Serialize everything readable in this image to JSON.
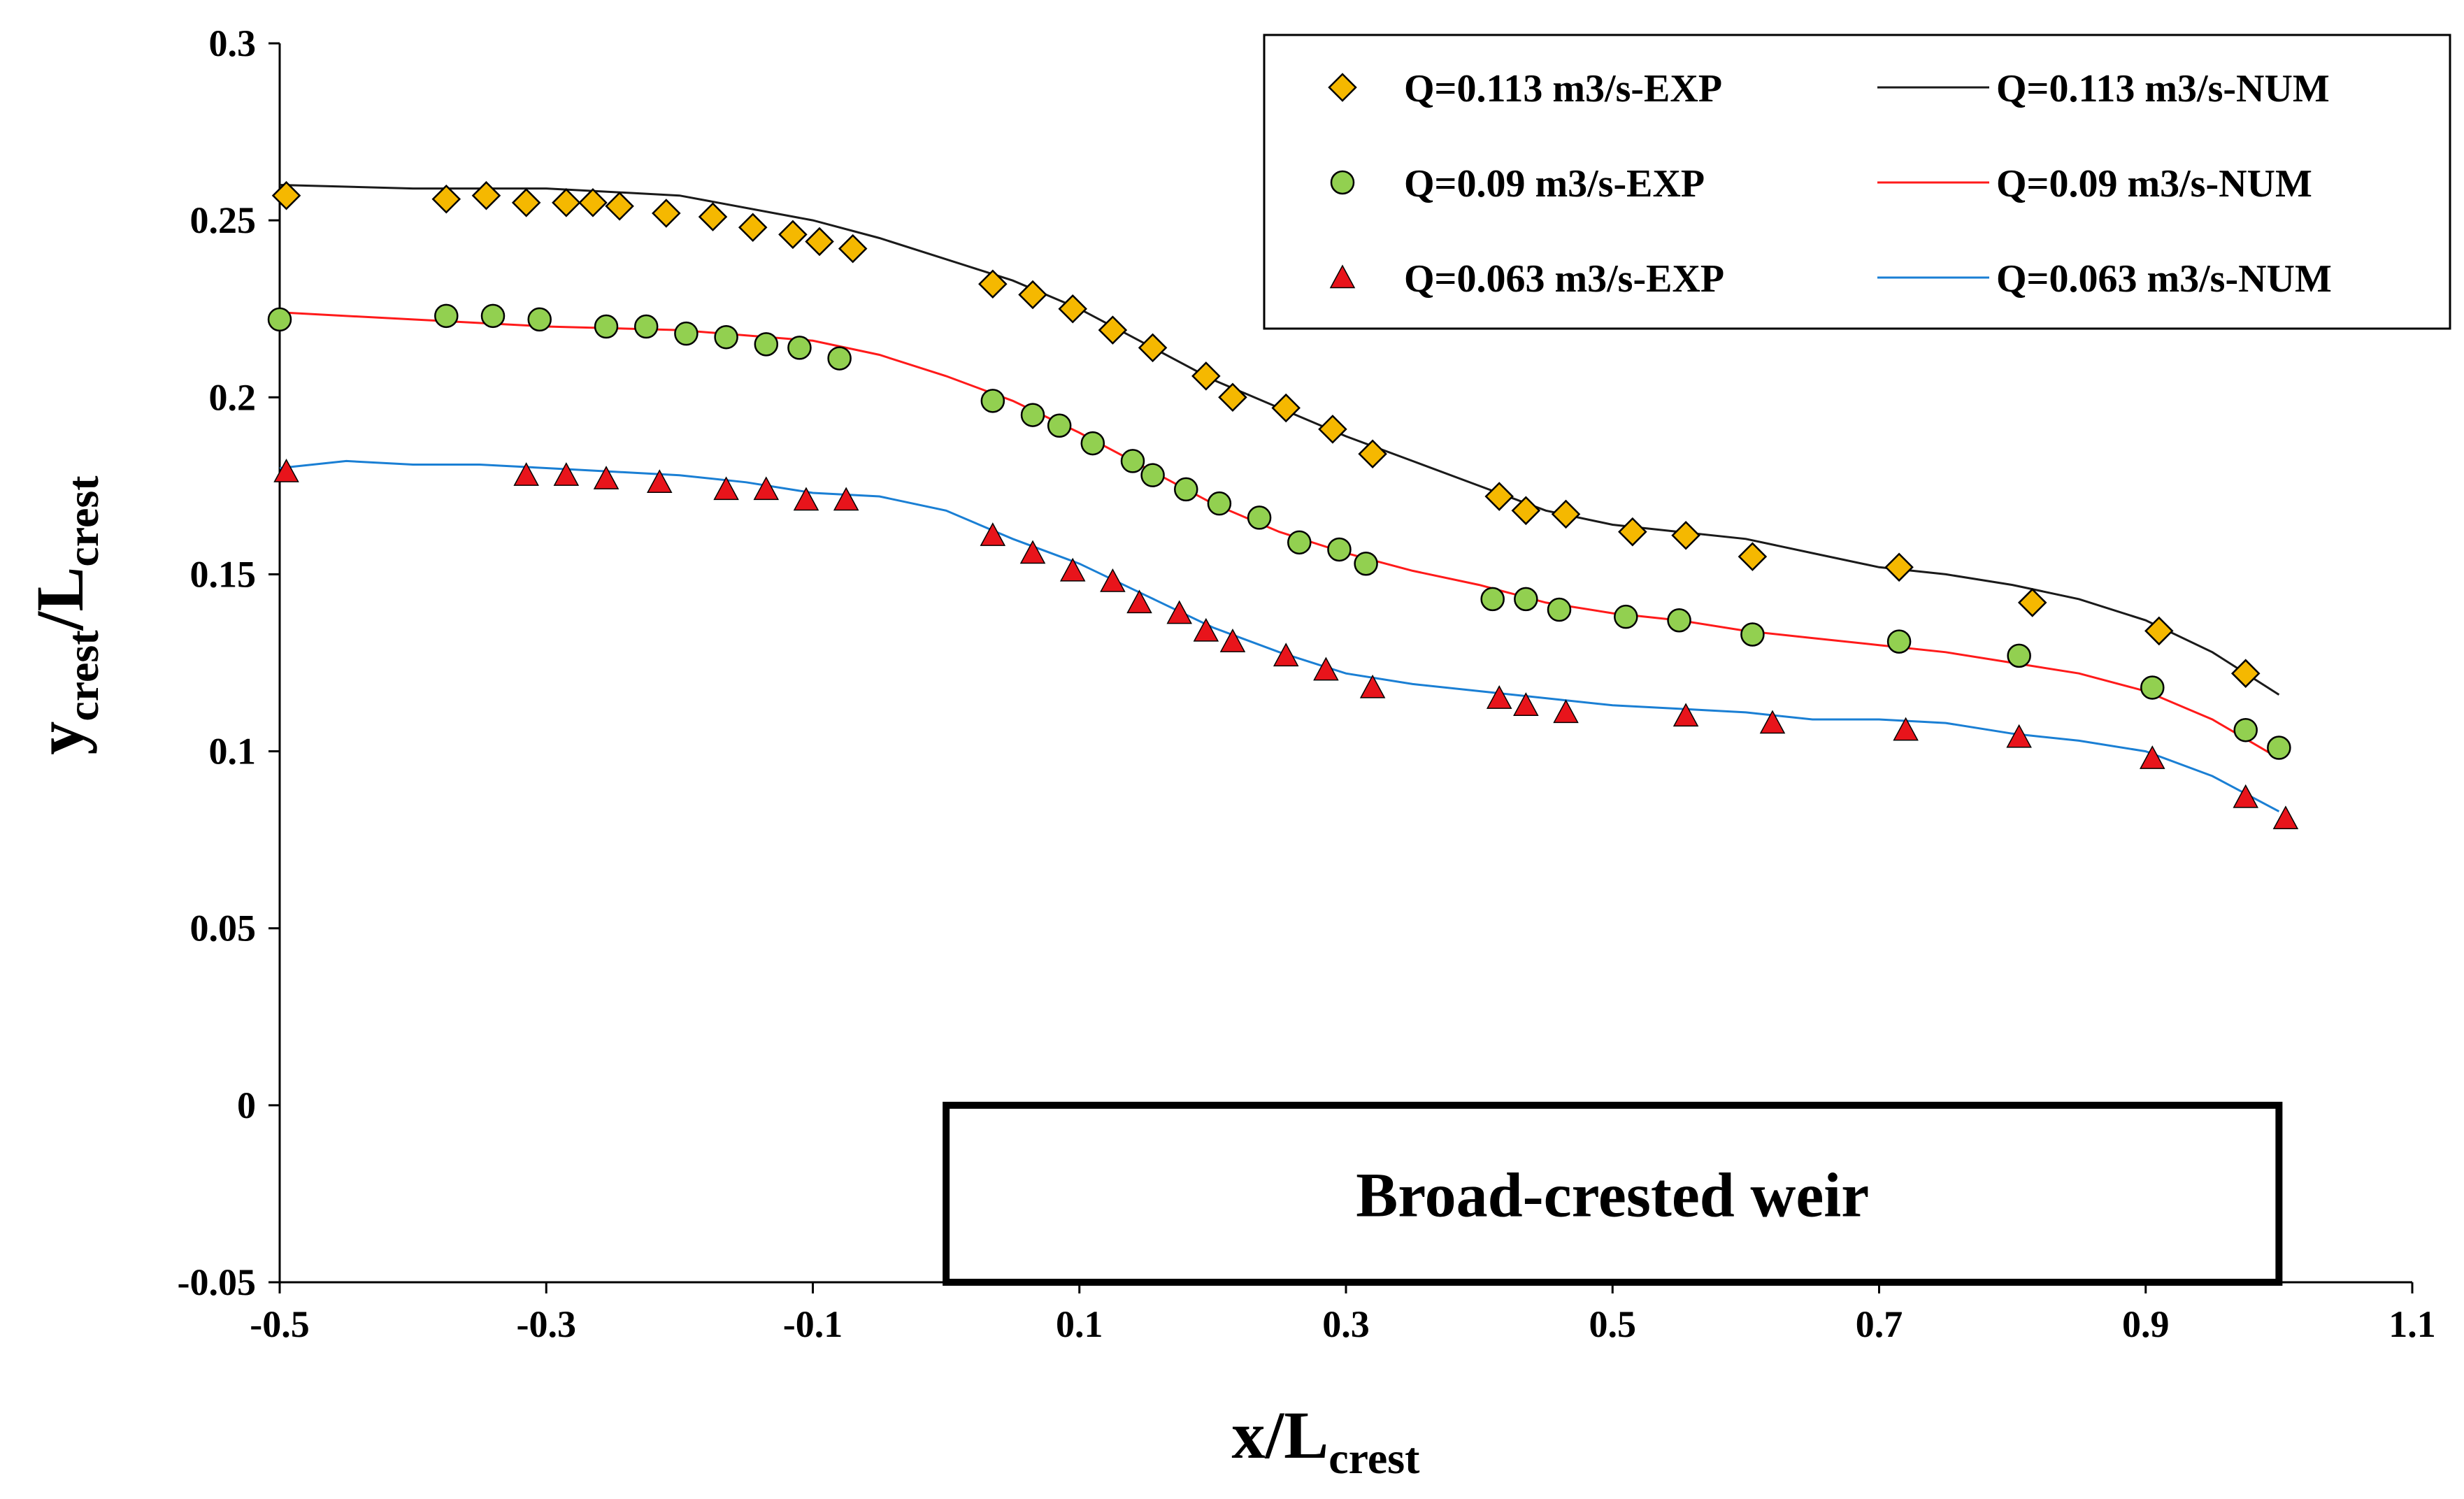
{
  "chart_data": {
    "type": "scatter",
    "title": "",
    "xlabel": {
      "main": "x/L",
      "sub": "crest"
    },
    "ylabel": {
      "main": "y",
      "sub1": "crest",
      "mid": "/L",
      "sub2": "crest"
    },
    "xlim": [
      -0.5,
      1.1
    ],
    "ylim": [
      -0.05,
      0.3
    ],
    "xticks": [
      -0.5,
      -0.3,
      -0.1,
      0.1,
      0.3,
      0.5,
      0.7,
      0.9,
      1.1
    ],
    "xtick_labels": [
      "-0.5",
      "-0.3",
      "-0.1",
      "0.1",
      "0.3",
      "0.5",
      "0.7",
      "0.9",
      "1.1"
    ],
    "yticks": [
      -0.05,
      0,
      0.05,
      0.1,
      0.15,
      0.2,
      0.25,
      0.3
    ],
    "ytick_labels": [
      "-0.05",
      "0",
      "0.05",
      "0.1",
      "0.15",
      "0.2",
      "0.25",
      "0.3"
    ],
    "grid": false,
    "legend_position": "top-right",
    "annotation": {
      "label": "Broad-crested weir",
      "x_start": 0.0,
      "x_end": 1.0,
      "y_top": 0.0,
      "y_bottom": -0.05
    },
    "series": [
      {
        "name": "Q=0.113 m3/s-EXP",
        "kind": "markers",
        "marker": "diamond",
        "color": "#f5b800",
        "x": [
          -0.495,
          -0.375,
          -0.345,
          -0.315,
          -0.285,
          -0.265,
          -0.245,
          -0.21,
          -0.175,
          -0.145,
          -0.115,
          -0.095,
          -0.07,
          0.035,
          0.065,
          0.095,
          0.125,
          0.155,
          0.195,
          0.215,
          0.255,
          0.29,
          0.32,
          0.415,
          0.435,
          0.465,
          0.515,
          0.555,
          0.605,
          0.715,
          0.815,
          0.91,
          0.975
        ],
        "y": [
          0.257,
          0.256,
          0.257,
          0.255,
          0.255,
          0.255,
          0.254,
          0.252,
          0.251,
          0.248,
          0.246,
          0.244,
          0.242,
          0.232,
          0.229,
          0.225,
          0.219,
          0.214,
          0.206,
          0.2,
          0.197,
          0.191,
          0.184,
          0.172,
          0.168,
          0.167,
          0.162,
          0.161,
          0.155,
          0.152,
          0.142,
          0.134,
          0.122
        ]
      },
      {
        "name": "Q=0.09 m3/s-EXP",
        "kind": "markers",
        "marker": "circle",
        "color": "#92d050",
        "x": [
          -0.5,
          -0.375,
          -0.34,
          -0.305,
          -0.255,
          -0.225,
          -0.195,
          -0.165,
          -0.135,
          -0.11,
          -0.08,
          0.035,
          0.065,
          0.085,
          0.11,
          0.14,
          0.155,
          0.18,
          0.205,
          0.235,
          0.265,
          0.295,
          0.315,
          0.41,
          0.435,
          0.46,
          0.51,
          0.55,
          0.605,
          0.715,
          0.805,
          0.905,
          0.975,
          1.0
        ],
        "y": [
          0.222,
          0.223,
          0.223,
          0.222,
          0.22,
          0.22,
          0.218,
          0.217,
          0.215,
          0.214,
          0.211,
          0.199,
          0.195,
          0.192,
          0.187,
          0.182,
          0.178,
          0.174,
          0.17,
          0.166,
          0.159,
          0.157,
          0.153,
          0.143,
          0.143,
          0.14,
          0.138,
          0.137,
          0.133,
          0.131,
          0.127,
          0.118,
          0.106,
          0.101
        ]
      },
      {
        "name": "Q=0.063 m3/s-EXP",
        "kind": "markers",
        "marker": "triangle",
        "color": "#e8141b",
        "x": [
          -0.495,
          -0.315,
          -0.285,
          -0.255,
          -0.215,
          -0.165,
          -0.135,
          -0.105,
          -0.075,
          0.035,
          0.065,
          0.095,
          0.125,
          0.145,
          0.175,
          0.195,
          0.215,
          0.255,
          0.285,
          0.32,
          0.415,
          0.435,
          0.465,
          0.555,
          0.62,
          0.72,
          0.805,
          0.905,
          0.975,
          1.005
        ],
        "y": [
          0.179,
          0.178,
          0.178,
          0.177,
          0.176,
          0.174,
          0.174,
          0.171,
          0.171,
          0.161,
          0.156,
          0.151,
          0.148,
          0.142,
          0.139,
          0.134,
          0.131,
          0.127,
          0.123,
          0.118,
          0.115,
          0.113,
          0.111,
          0.11,
          0.108,
          0.106,
          0.104,
          0.098,
          0.087,
          0.081
        ]
      },
      {
        "name": "Q=0.113 m3/s-NUM",
        "kind": "line",
        "color": "#1a1a1a",
        "x": [
          -0.5,
          -0.4,
          -0.3,
          -0.2,
          -0.1,
          -0.05,
          0.0,
          0.05,
          0.1,
          0.15,
          0.2,
          0.25,
          0.3,
          0.35,
          0.4,
          0.45,
          0.5,
          0.55,
          0.6,
          0.65,
          0.7,
          0.75,
          0.8,
          0.85,
          0.9,
          0.95,
          1.0
        ],
        "y": [
          0.26,
          0.259,
          0.259,
          0.257,
          0.25,
          0.245,
          0.239,
          0.233,
          0.225,
          0.215,
          0.205,
          0.197,
          0.189,
          0.182,
          0.175,
          0.168,
          0.164,
          0.162,
          0.16,
          0.156,
          0.152,
          0.15,
          0.147,
          0.143,
          0.137,
          0.128,
          0.116
        ]
      },
      {
        "name": "Q=0.09 m3/s-NUM",
        "kind": "line",
        "color": "#ff1a1a",
        "x": [
          -0.5,
          -0.4,
          -0.3,
          -0.2,
          -0.1,
          -0.05,
          0.0,
          0.05,
          0.1,
          0.15,
          0.2,
          0.25,
          0.3,
          0.35,
          0.4,
          0.45,
          0.5,
          0.55,
          0.6,
          0.65,
          0.7,
          0.75,
          0.8,
          0.85,
          0.9,
          0.95,
          1.0
        ],
        "y": [
          0.224,
          0.222,
          0.22,
          0.219,
          0.216,
          0.212,
          0.206,
          0.199,
          0.19,
          0.18,
          0.17,
          0.162,
          0.156,
          0.151,
          0.147,
          0.142,
          0.139,
          0.137,
          0.134,
          0.132,
          0.13,
          0.128,
          0.125,
          0.122,
          0.117,
          0.109,
          0.098
        ]
      },
      {
        "name": "Q=0.063 m3/s-NUM",
        "kind": "line",
        "color": "#1a7fd4",
        "x": [
          -0.5,
          -0.45,
          -0.4,
          -0.35,
          -0.3,
          -0.25,
          -0.2,
          -0.15,
          -0.1,
          -0.05,
          0.0,
          0.05,
          0.1,
          0.15,
          0.2,
          0.25,
          0.3,
          0.35,
          0.4,
          0.45,
          0.5,
          0.55,
          0.6,
          0.65,
          0.7,
          0.75,
          0.8,
          0.85,
          0.9,
          0.95,
          1.0
        ],
        "y": [
          0.18,
          0.182,
          0.181,
          0.181,
          0.18,
          0.179,
          0.178,
          0.176,
          0.173,
          0.172,
          0.168,
          0.16,
          0.153,
          0.144,
          0.135,
          0.128,
          0.122,
          0.119,
          0.117,
          0.115,
          0.113,
          0.112,
          0.111,
          0.109,
          0.109,
          0.108,
          0.105,
          0.103,
          0.1,
          0.093,
          0.083
        ]
      }
    ]
  }
}
